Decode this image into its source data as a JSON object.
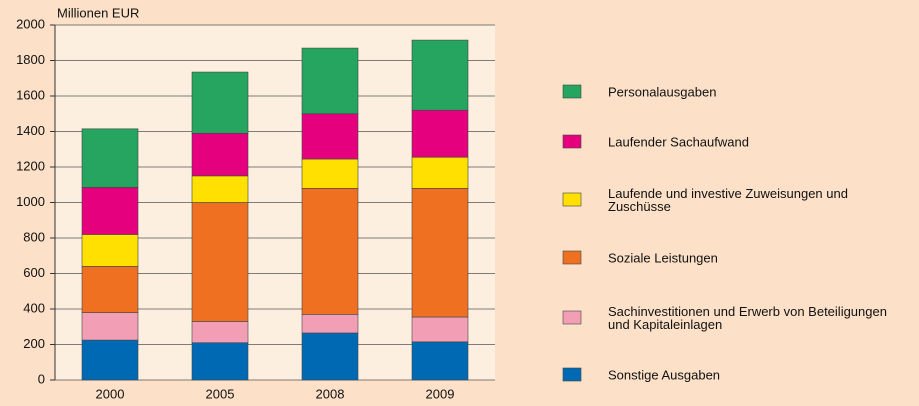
{
  "chart_data": {
    "type": "stacked_bar",
    "y_label": "Millionen EUR",
    "categories": [
      "2000",
      "2005",
      "2008",
      "2009"
    ],
    "series": [
      {
        "name": "Sonstige Ausgaben",
        "color": "#0069b4",
        "values": [
          225,
          210,
          265,
          215
        ]
      },
      {
        "name": "Sachinvestitionen und Erwerb von Beteiligungen und Kapitaleinlagen",
        "color": "#f29fb6",
        "values": [
          155,
          120,
          105,
          140
        ]
      },
      {
        "name": "Soziale Leistungen",
        "color": "#f07022",
        "values": [
          260,
          670,
          710,
          725
        ]
      },
      {
        "name": "Laufende und investive Zuweisungen und Zuschüsse",
        "color": "#ffe000",
        "values": [
          180,
          150,
          165,
          175
        ]
      },
      {
        "name": "Laufender Sachaufwand",
        "color": "#e5007e",
        "values": [
          265,
          240,
          255,
          265
        ]
      },
      {
        "name": "Personalausgaben",
        "color": "#25a55f",
        "values": [
          330,
          345,
          370,
          395
        ]
      }
    ],
    "ylim": [
      0,
      2000
    ],
    "yticks": [
      0,
      200,
      400,
      600,
      800,
      1000,
      1200,
      1400,
      1600,
      1800,
      2000
    ],
    "grid": true
  }
}
